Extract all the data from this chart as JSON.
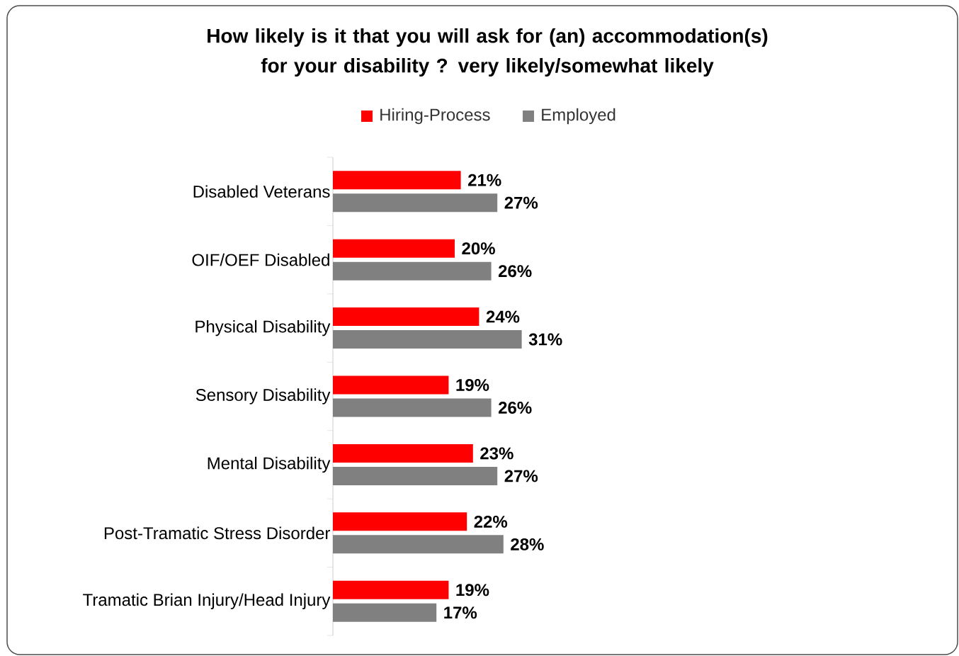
{
  "chart_data": {
    "type": "bar",
    "orientation": "horizontal",
    "title": "How likely is it that you will ask for (an) accommodation(s) for your disability ? very likely/somewhat likely",
    "categories": [
      "Disabled Veterans",
      "OIF/OEF Disabled",
      "Physical Disability",
      "Sensory Disability",
      "Mental Disability",
      "Post-Tramatic Stress Disorder",
      "Tramatic Brian Injury/Head Injury"
    ],
    "series": [
      {
        "name": "Hiring-Process",
        "color": "#ff0000",
        "values": [
          21,
          20,
          24,
          19,
          23,
          22,
          19
        ],
        "value_labels": [
          "21%",
          "20%",
          "24%",
          "19%",
          "23%",
          "22%",
          "19%"
        ]
      },
      {
        "name": "Employed",
        "color": "#808080",
        "values": [
          27,
          26,
          31,
          26,
          27,
          28,
          17
        ],
        "value_labels": [
          "27%",
          "26%",
          "31%",
          "26%",
          "27%",
          "28%",
          "17%"
        ]
      }
    ],
    "tick_labels": "y",
    "legend": "top"
  }
}
